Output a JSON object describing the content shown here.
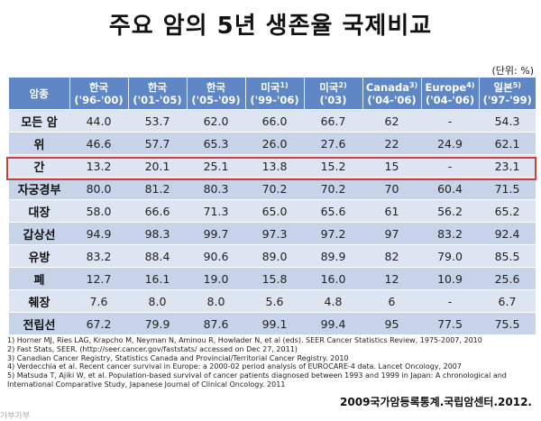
{
  "title": "주요 암의 5년 생존율 국제비교",
  "unit": "(단위: %)",
  "table": {
    "headers": [
      {
        "line1": "암종",
        "line2": "",
        "sup": ""
      },
      {
        "line1": "한국",
        "line2": "('96-'00)",
        "sup": ""
      },
      {
        "line1": "한국",
        "line2": "('01-'05)",
        "sup": ""
      },
      {
        "line1": "한국",
        "line2": "('05-'09)",
        "sup": ""
      },
      {
        "line1": "미국",
        "line2": "('99-'06)",
        "sup": "1)"
      },
      {
        "line1": "미국",
        "line2": "('03)",
        "sup": "2)"
      },
      {
        "line1": "Canada",
        "line2": "('04-'06)",
        "sup": "3)"
      },
      {
        "line1": "Europe",
        "line2": "('04-'06)",
        "sup": "4)"
      },
      {
        "line1": "일본",
        "line2": "('97-'99)",
        "sup": "5)"
      }
    ],
    "rows": [
      [
        "모든 암",
        "44.0",
        "53.7",
        "62.0",
        "66.0",
        "66.7",
        "62",
        "-",
        "54.3"
      ],
      [
        "위",
        "46.6",
        "57.7",
        "65.3",
        "26.0",
        "27.6",
        "22",
        "24.9",
        "62.1"
      ],
      [
        "간",
        "13.2",
        "20.1",
        "25.1",
        "13.8",
        "15.2",
        "15",
        "-",
        "23.1"
      ],
      [
        "자궁경부",
        "80.0",
        "81.2",
        "80.3",
        "70.2",
        "70.2",
        "70",
        "60.4",
        "71.5"
      ],
      [
        "대장",
        "58.0",
        "66.6",
        "71.3",
        "65.0",
        "65.6",
        "61",
        "56.2",
        "65.2"
      ],
      [
        "갑상선",
        "94.9",
        "98.3",
        "99.7",
        "97.3",
        "97.2",
        "97",
        "83.2",
        "92.4"
      ],
      [
        "유방",
        "83.2",
        "88.4",
        "90.6",
        "89.0",
        "89.9",
        "82",
        "79.0",
        "85.5"
      ],
      [
        "폐",
        "12.7",
        "16.1",
        "19.0",
        "15.8",
        "16.0",
        "12",
        "10.9",
        "25.6"
      ],
      [
        "췌장",
        "7.6",
        "8.0",
        "8.0",
        "5.6",
        "4.8",
        "6",
        "-",
        "6.7"
      ],
      [
        "전립선",
        "67.2",
        "79.9",
        "87.6",
        "99.1",
        "99.4",
        "95",
        "77.5",
        "75.5"
      ]
    ]
  },
  "highlight_color": "#d93b3b",
  "header_color": "#5f87c5",
  "notes": [
    "1) Horner MJ, Ries LAG, Krapcho M, Neyman N, Aminou R, Howlader N, et al (eds). SEER Cancer Statistics Review, 1975-2007, 2010",
    "2) Fast Stats, SEER. (http://seer.cancer.gov/faststats/ accessed on Dec 27, 2011)",
    "3) Canadian Cancer Registry, Statistics Canada and Provincial/Territorial Cancer Registry. 2010",
    "4) Verdecchia et al. Recent cancer survival in Europe: a 2000-02 period analysis of EUROCARE-4 data. Lancet Oncology, 2007",
    "5) Matsuda T, Ajiki W, et al. Population-based survival of cancer patients diagnosed between 1993 and 1999 in Japan: A chronological and",
    "International Comparative Study, Japanese Journal of Clinical Oncology. 2011"
  ],
  "source": "2009국가암등록통계.국립암센터.2012.",
  "cut_text": "가부가부"
}
